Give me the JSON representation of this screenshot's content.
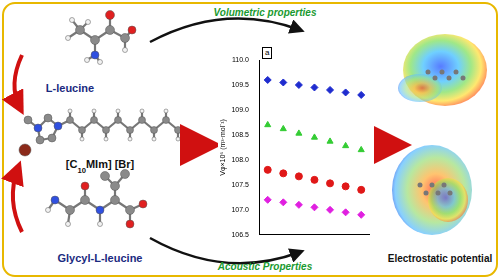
{
  "diagram": {
    "molecules": [
      {
        "label": "L-leucine"
      },
      {
        "label": "[C10MIm] [Br]"
      },
      {
        "label": "Glycyl-L-leucine"
      }
    ],
    "edges": [
      {
        "label": "Volumetric properties"
      },
      {
        "label": "Acoustic Properties"
      }
    ],
    "result": {
      "label": "Electrostatic potential"
    }
  },
  "chart_data": {
    "type": "scatter",
    "annotation": "a",
    "y_label": "Vφ×10⁶ (m³·mol⁻¹)",
    "categories": [
      null,
      null,
      null,
      null,
      null,
      null,
      null
    ],
    "series": [
      {
        "color": "#1f2ccf",
        "marker": "diamond",
        "values": [
          109.6,
          109.55,
          109.5,
          109.45,
          109.4,
          109.35,
          109.3
        ]
      },
      {
        "color": "#33cc33",
        "marker": "triangle",
        "values": [
          108.7,
          108.62,
          108.53,
          108.45,
          108.37,
          108.28,
          108.2
        ]
      },
      {
        "color": "#e01818",
        "marker": "circle",
        "values": [
          107.8,
          107.73,
          107.67,
          107.6,
          107.53,
          107.47,
          107.4
        ]
      },
      {
        "color": "#e020e0",
        "marker": "diamond",
        "values": [
          107.2,
          107.15,
          107.1,
          107.05,
          107.0,
          106.95,
          106.9
        ]
      }
    ],
    "ylim": [
      106.5,
      110.0
    ],
    "yticks": [
      {
        "value": 106.5,
        "label": "106.5"
      },
      {
        "value": 107,
        "label": "107.0"
      },
      {
        "value": 107.5,
        "label": "107.5"
      },
      {
        "value": 108,
        "label": "108.0"
      },
      {
        "value": 108.5,
        "label": "108.5"
      },
      {
        "value": 109,
        "label": "109.0"
      },
      {
        "value": 109.5,
        "label": "109.5"
      },
      {
        "value": 110,
        "label": "110.0"
      }
    ],
    "grid": false,
    "tick_labels": "y"
  }
}
